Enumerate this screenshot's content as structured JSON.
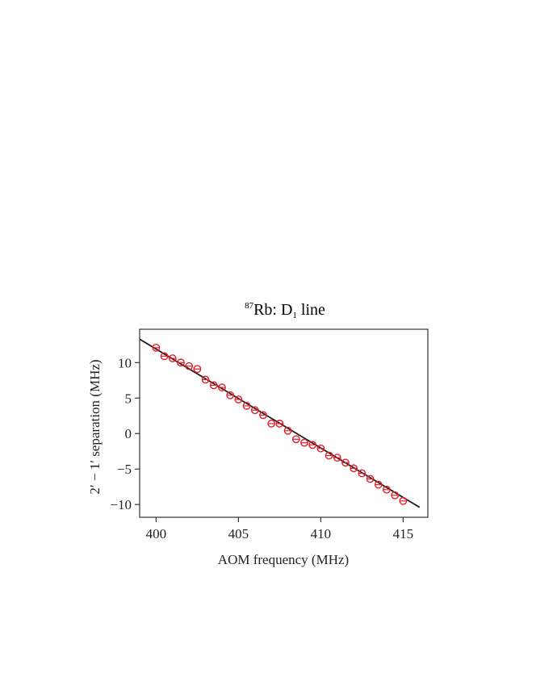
{
  "chart_data": {
    "type": "scatter",
    "title": {
      "isotope_sup": "87",
      "element": "Rb: D",
      "line_sub": "1",
      "suffix": " line"
    },
    "xlabel": "AOM frequency (MHz)",
    "ylabel": "2′ − 1′ separation (MHz)",
    "xlim": [
      399,
      416.5
    ],
    "ylim": [
      -11.8,
      14.7
    ],
    "xticks": [
      400,
      405,
      410,
      415
    ],
    "yticks": [
      -10,
      -5,
      0,
      5,
      10
    ],
    "ytick_labels": [
      "−10",
      "−5",
      "0",
      "5",
      "10"
    ],
    "grid": false,
    "series": [
      {
        "style": "markers",
        "marker": "open-circle",
        "color": "#e0202a",
        "x": [
          400,
          400.5,
          401,
          401.5,
          402,
          402.5,
          403,
          403.5,
          404,
          404.5,
          405,
          405.5,
          406,
          406.5,
          407,
          407.5,
          408,
          408.5,
          409,
          409.5,
          410,
          410.5,
          411,
          411.5,
          412,
          412.5,
          413,
          413.5,
          414,
          414.5,
          415
        ],
        "y": [
          12.1,
          10.9,
          10.6,
          10.0,
          9.5,
          9.1,
          7.6,
          6.8,
          6.5,
          5.4,
          4.8,
          3.9,
          3.3,
          2.6,
          1.4,
          1.4,
          0.4,
          -0.8,
          -1.3,
          -1.6,
          -2.1,
          -3.1,
          -3.4,
          -4.1,
          -4.9,
          -5.6,
          -6.4,
          -7.2,
          -7.9,
          -8.7,
          -9.5
        ]
      },
      {
        "style": "line",
        "color": "#222222",
        "x": [
          399,
          416
        ],
        "y": [
          13.3,
          -10.4
        ]
      }
    ]
  }
}
